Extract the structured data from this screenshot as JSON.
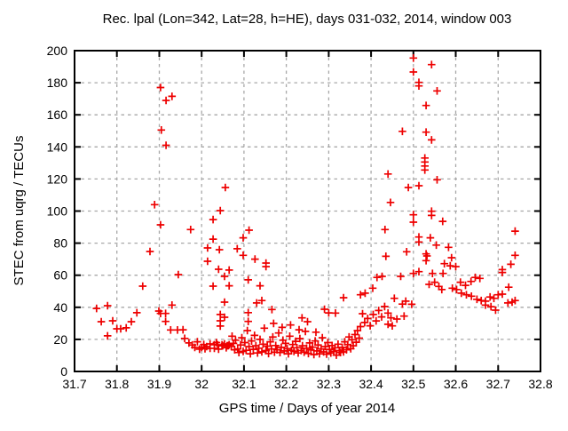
{
  "chart_data": {
    "type": "scatter",
    "title": "Rec. lpal (Lon=342, Lat=28, h=HE), days 031-032, 2014, window 003",
    "xlabel": "GPS time / Days of year 2014",
    "ylabel": "STEC from uqrg / TECUs",
    "xlim": [
      31.7,
      32.8
    ],
    "ylim": [
      0,
      200
    ],
    "xticks": [
      31.7,
      31.8,
      31.9,
      32.0,
      32.1,
      32.2,
      32.3,
      32.4,
      32.5,
      32.6,
      32.7,
      32.8
    ],
    "xtick_labels": [
      "31.7",
      "31.8",
      "31.9",
      "32",
      "32.1",
      "32.2",
      "32.3",
      "32.4",
      "32.5",
      "32.6",
      "32.7",
      "32.8"
    ],
    "yticks": [
      0,
      20,
      40,
      60,
      80,
      100,
      120,
      140,
      160,
      180,
      200
    ],
    "ytick_labels": [
      "0",
      "20",
      "40",
      "60",
      "80",
      "100",
      "120",
      "140",
      "160",
      "180",
      "200"
    ],
    "grid": true,
    "legend": false,
    "marker": "plus",
    "marker_color": "#ee0000",
    "grid_color": "#a8a8a8",
    "border_color": "#000000",
    "points": [
      [
        31.752,
        39.3
      ],
      [
        31.763,
        31.0
      ],
      [
        31.778,
        41.0
      ],
      [
        31.778,
        22.2
      ],
      [
        31.79,
        31.6
      ],
      [
        31.8,
        26.6
      ],
      [
        31.809,
        26.6
      ],
      [
        31.822,
        27.2
      ],
      [
        31.834,
        31.0
      ],
      [
        31.847,
        36.6
      ],
      [
        31.861,
        53.2
      ],
      [
        31.878,
        74.8
      ],
      [
        31.889,
        104.0
      ],
      [
        31.899,
        37.7
      ],
      [
        31.903,
        91.4
      ],
      [
        31.903,
        177.0
      ],
      [
        31.903,
        36.2
      ],
      [
        31.905,
        150.5
      ],
      [
        31.915,
        36.2
      ],
      [
        31.915,
        31.2
      ],
      [
        31.916,
        169.0
      ],
      [
        31.916,
        141.0
      ],
      [
        31.927,
        25.9
      ],
      [
        31.93,
        171.5
      ],
      [
        31.93,
        41.4
      ],
      [
        31.943,
        25.9
      ],
      [
        31.945,
        60.4
      ],
      [
        31.956,
        26.0
      ],
      [
        31.96,
        20.6
      ],
      [
        31.97,
        17.8
      ],
      [
        31.974,
        88.5
      ],
      [
        31.978,
        16.5
      ],
      [
        31.984,
        15.0
      ],
      [
        31.99,
        18.5
      ],
      [
        31.995,
        13.9
      ],
      [
        32.0,
        15.0
      ],
      [
        32.005,
        16.8
      ],
      [
        32.008,
        14.2
      ],
      [
        32.012,
        15.5
      ],
      [
        32.014,
        77.0
      ],
      [
        32.014,
        68.7
      ],
      [
        32.02,
        17.2
      ],
      [
        32.02,
        14.4
      ],
      [
        32.027,
        94.7
      ],
      [
        32.027,
        82.5
      ],
      [
        32.027,
        53.2
      ],
      [
        32.03,
        16.7
      ],
      [
        32.03,
        14.4
      ],
      [
        32.035,
        18.0
      ],
      [
        32.038,
        16.6
      ],
      [
        32.04,
        63.7
      ],
      [
        32.04,
        13.9
      ],
      [
        32.042,
        75.9
      ],
      [
        32.044,
        100.3
      ],
      [
        32.044,
        31.6
      ],
      [
        32.044,
        35.5
      ],
      [
        32.044,
        28.3
      ],
      [
        32.048,
        16.6
      ],
      [
        32.05,
        16.0
      ],
      [
        32.054,
        59.3
      ],
      [
        32.054,
        43.2
      ],
      [
        32.054,
        33.8
      ],
      [
        32.054,
        17.2
      ],
      [
        32.056,
        114.7
      ],
      [
        32.058,
        14.8
      ],
      [
        32.06,
        16.0
      ],
      [
        32.063,
        16.1
      ],
      [
        32.065,
        63.2
      ],
      [
        32.065,
        53.4
      ],
      [
        32.065,
        16.7
      ],
      [
        32.07,
        15.6
      ],
      [
        32.072,
        22.0
      ],
      [
        32.075,
        17.5
      ],
      [
        32.078,
        13.5
      ],
      [
        32.084,
        76.5
      ],
      [
        32.098,
        83.3
      ],
      [
        32.098,
        72.4
      ],
      [
        32.11,
        57.1
      ],
      [
        32.11,
        36.7
      ],
      [
        32.11,
        31.2
      ],
      [
        32.112,
        88.1
      ],
      [
        32.126,
        70.0
      ],
      [
        32.13,
        42.7
      ],
      [
        32.138,
        53.4
      ],
      [
        32.142,
        44.2
      ],
      [
        32.152,
        67.6
      ],
      [
        32.152,
        65.4
      ],
      [
        32.166,
        38.6
      ],
      [
        32.08,
        19.5
      ],
      [
        32.085,
        14.0
      ],
      [
        32.088,
        11.8
      ],
      [
        32.092,
        16.5
      ],
      [
        32.095,
        21.0
      ],
      [
        32.098,
        12.5
      ],
      [
        32.102,
        18.0
      ],
      [
        32.105,
        13.2
      ],
      [
        32.108,
        25.5
      ],
      [
        32.112,
        15.5
      ],
      [
        32.115,
        11.0
      ],
      [
        32.118,
        19.0
      ],
      [
        32.122,
        13.8
      ],
      [
        32.125,
        22.5
      ],
      [
        32.128,
        16.0
      ],
      [
        32.132,
        11.5
      ],
      [
        32.135,
        14.5
      ],
      [
        32.138,
        20.0
      ],
      [
        32.142,
        12.2
      ],
      [
        32.145,
        17.0
      ],
      [
        32.148,
        27.0
      ],
      [
        32.152,
        13.0
      ],
      [
        32.155,
        15.8
      ],
      [
        32.158,
        11.2
      ],
      [
        32.162,
        18.5
      ],
      [
        32.165,
        14.0
      ],
      [
        32.168,
        21.5
      ],
      [
        32.17,
        30.0
      ],
      [
        32.172,
        12.0
      ],
      [
        32.175,
        16.2
      ],
      [
        32.178,
        13.5
      ],
      [
        32.182,
        24.0
      ],
      [
        32.185,
        11.8
      ],
      [
        32.188,
        15.0
      ],
      [
        32.19,
        27.5
      ],
      [
        32.192,
        19.5
      ],
      [
        32.195,
        12.8
      ],
      [
        32.198,
        17.5
      ],
      [
        32.202,
        14.2
      ],
      [
        32.205,
        11.0
      ],
      [
        32.208,
        22.0
      ],
      [
        32.21,
        29.0
      ],
      [
        32.212,
        13.2
      ],
      [
        32.215,
        16.8
      ],
      [
        32.218,
        12.5
      ],
      [
        32.222,
        18.8
      ],
      [
        32.225,
        14.8
      ],
      [
        32.228,
        11.5
      ],
      [
        32.23,
        26.0
      ],
      [
        32.232,
        20.5
      ],
      [
        32.235,
        13.0
      ],
      [
        32.237,
        33.4
      ],
      [
        32.238,
        16.0
      ],
      [
        32.242,
        12.0
      ],
      [
        32.245,
        25.0
      ],
      [
        32.248,
        14.5
      ],
      [
        32.25,
        31.0
      ],
      [
        32.252,
        11.2
      ],
      [
        32.255,
        17.8
      ],
      [
        32.258,
        13.5
      ],
      [
        32.262,
        15.2
      ],
      [
        32.265,
        10.5
      ],
      [
        32.268,
        19.0
      ],
      [
        32.27,
        24.5
      ],
      [
        32.272,
        12.8
      ],
      [
        32.275,
        16.5
      ],
      [
        32.278,
        11.0
      ],
      [
        32.282,
        14.0
      ],
      [
        32.285,
        21.0
      ],
      [
        32.288,
        12.2
      ],
      [
        32.292,
        15.5
      ],
      [
        32.295,
        10.8
      ],
      [
        32.298,
        18.0
      ],
      [
        32.29,
        38.8
      ],
      [
        32.3,
        36.5
      ],
      [
        32.302,
        13.8
      ],
      [
        32.305,
        11.5
      ],
      [
        32.308,
        16.2
      ],
      [
        32.312,
        12.5
      ],
      [
        32.315,
        14.8
      ],
      [
        32.316,
        36.4
      ],
      [
        32.318,
        10.2
      ],
      [
        32.322,
        17.0
      ],
      [
        32.325,
        13.0
      ],
      [
        32.328,
        11.8
      ],
      [
        32.332,
        15.0
      ],
      [
        32.335,
        46.0
      ],
      [
        32.335,
        12.2
      ],
      [
        32.338,
        18.5
      ],
      [
        32.342,
        13.5
      ],
      [
        32.345,
        16.8
      ],
      [
        32.348,
        21.5
      ],
      [
        32.352,
        14.2
      ],
      [
        32.355,
        19.8
      ],
      [
        32.358,
        16.0
      ],
      [
        32.362,
        23.0
      ],
      [
        32.365,
        18.2
      ],
      [
        32.368,
        25.5
      ],
      [
        32.372,
        20.8
      ],
      [
        32.375,
        28.0
      ],
      [
        32.375,
        47.8
      ],
      [
        32.38,
        36.0
      ],
      [
        32.385,
        30.5
      ],
      [
        32.386,
        48.8
      ],
      [
        32.392,
        33.0
      ],
      [
        32.398,
        28.5
      ],
      [
        32.404,
        51.9
      ],
      [
        32.405,
        35.5
      ],
      [
        32.412,
        31.5
      ],
      [
        32.414,
        58.6
      ],
      [
        32.418,
        38.0
      ],
      [
        32.425,
        34.0
      ],
      [
        32.426,
        59.3
      ],
      [
        32.432,
        40.5
      ],
      [
        32.433,
        88.5
      ],
      [
        32.435,
        71.8
      ],
      [
        32.44,
        123.1
      ],
      [
        32.44,
        36.4
      ],
      [
        32.44,
        29.4
      ],
      [
        32.446,
        105.4
      ],
      [
        32.447,
        33.4
      ],
      [
        32.45,
        28.4
      ],
      [
        32.455,
        45.6
      ],
      [
        32.461,
        32.7
      ],
      [
        32.47,
        59.3
      ],
      [
        32.474,
        149.7
      ],
      [
        32.474,
        42.0
      ],
      [
        32.478,
        34.5
      ],
      [
        32.482,
        43.8
      ],
      [
        32.484,
        74.6
      ],
      [
        32.488,
        114.7
      ],
      [
        32.496,
        41.9
      ],
      [
        32.5,
        195.4
      ],
      [
        32.5,
        186.7
      ],
      [
        32.5,
        97.7
      ],
      [
        32.5,
        93.1
      ],
      [
        32.5,
        61.1
      ],
      [
        32.513,
        180.2
      ],
      [
        32.513,
        178.0
      ],
      [
        32.513,
        115.8
      ],
      [
        32.513,
        83.8
      ],
      [
        32.513,
        80.7
      ],
      [
        32.513,
        62.2
      ],
      [
        32.527,
        133.1
      ],
      [
        32.527,
        130.6
      ],
      [
        32.527,
        128.1
      ],
      [
        32.527,
        125.6
      ],
      [
        32.53,
        165.8
      ],
      [
        32.53,
        149.2
      ],
      [
        32.53,
        73.3
      ],
      [
        32.53,
        69.1
      ],
      [
        32.532,
        72.0
      ],
      [
        32.537,
        54.3
      ],
      [
        32.54,
        83.3
      ],
      [
        32.543,
        191.3
      ],
      [
        32.543,
        144.4
      ],
      [
        32.543,
        99.9
      ],
      [
        32.543,
        97.3
      ],
      [
        32.545,
        61.1
      ],
      [
        32.55,
        55.6
      ],
      [
        32.554,
        78.8
      ],
      [
        32.556,
        174.9
      ],
      [
        32.556,
        119.5
      ],
      [
        32.56,
        53.0
      ],
      [
        32.567,
        51.1
      ],
      [
        32.569,
        93.6
      ],
      [
        32.57,
        61.1
      ],
      [
        32.573,
        67.2
      ],
      [
        32.583,
        77.4
      ],
      [
        32.587,
        65.9
      ],
      [
        32.59,
        70.9
      ],
      [
        32.592,
        51.9
      ],
      [
        32.6,
        65.4
      ],
      [
        32.602,
        51.1
      ],
      [
        32.611,
        55.6
      ],
      [
        32.613,
        48.8
      ],
      [
        32.623,
        53.7
      ],
      [
        32.625,
        47.8
      ],
      [
        32.636,
        56.1
      ],
      [
        32.637,
        46.9
      ],
      [
        32.646,
        58.6
      ],
      [
        32.65,
        45.0
      ],
      [
        32.657,
        58.0
      ],
      [
        32.66,
        44.2
      ],
      [
        32.67,
        43.8
      ],
      [
        32.67,
        41.4
      ],
      [
        32.681,
        46.4
      ],
      [
        32.683,
        40.4
      ],
      [
        32.69,
        45.6
      ],
      [
        32.694,
        38.2
      ],
      [
        32.7,
        47.8
      ],
      [
        32.71,
        63.5
      ],
      [
        32.71,
        61.7
      ],
      [
        32.71,
        48.2
      ],
      [
        32.723,
        42.7
      ],
      [
        32.725,
        52.5
      ],
      [
        32.73,
        66.8
      ],
      [
        32.733,
        43.2
      ],
      [
        32.74,
        87.5
      ],
      [
        32.74,
        72.4
      ],
      [
        32.74,
        44.2
      ]
    ]
  }
}
